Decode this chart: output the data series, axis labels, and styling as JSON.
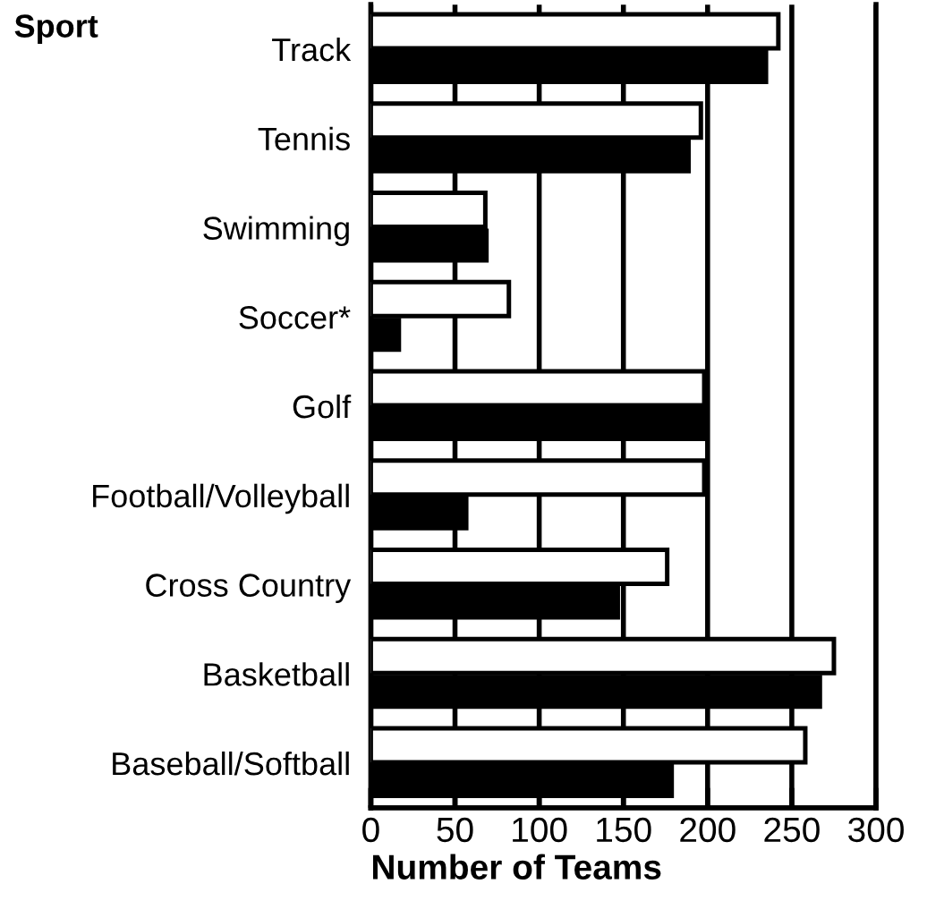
{
  "chart_data": {
    "type": "bar",
    "orientation": "horizontal",
    "ylabel": "Sport",
    "xlabel": "Number of Teams",
    "categories": [
      "Track",
      "Tennis",
      "Swimming",
      "Soccer*",
      "Golf",
      "Football/Volleyball",
      "Cross Country",
      "Basketball",
      "Baseball/Softball"
    ],
    "series": [
      {
        "color": "#ffffff",
        "values": [
          242,
          196,
          68,
          82,
          198,
          198,
          176,
          275,
          258
        ]
      },
      {
        "color": "#000000",
        "values": [
          236,
          190,
          70,
          18,
          200,
          58,
          148,
          268,
          180
        ]
      }
    ],
    "xlim": [
      0,
      300
    ],
    "xticks": [
      0,
      50,
      100,
      150,
      200,
      250,
      300
    ],
    "grid": "x",
    "legend": false
  }
}
